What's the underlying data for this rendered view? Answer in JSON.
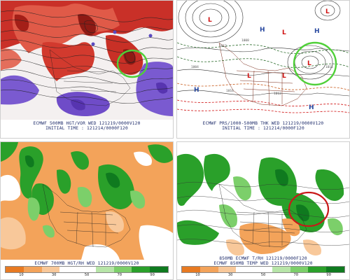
{
  "panels": {
    "top_left": {
      "line1": "ECMWF 500MB HGT/VOR WED 121219/0000V120",
      "line2": "INITIAL TIME : 121214/0000F120"
    },
    "top_right": {
      "line1": "ECMWF PRS/1000-500MB THK WED 121219/0000V120",
      "line2": "INITIAL TIME : 121214/0000F120",
      "isobar_labels": [
        "1012",
        "1008",
        "1004",
        "1016",
        "1012",
        "1008",
        "1004",
        "1000",
        "996",
        "1011"
      ]
    },
    "bottom_left": {
      "line1": "ECMWF 700MB HGT/RH WED 121219/0000V120",
      "color_scale": [
        "10",
        "30",
        "50",
        "70",
        "90"
      ]
    },
    "bottom_right": {
      "line1": "850MB ECMWF T/RH 121219/0000F120",
      "line2": "ECMWF 850MB TEMP WED 121219/0000V120",
      "color_scale": [
        "10",
        "30",
        "50",
        "70",
        "90"
      ]
    }
  },
  "colors": {
    "vorticity_red": "#d23a2e",
    "vorticity_purple": "#7a5ad0",
    "rh_green": "#2aa02a",
    "dry_orange": "#f3a35a",
    "highlight_green": "#4fd038",
    "highlight_red": "#c81818"
  },
  "symbols": {
    "low": "L",
    "high": "H"
  }
}
